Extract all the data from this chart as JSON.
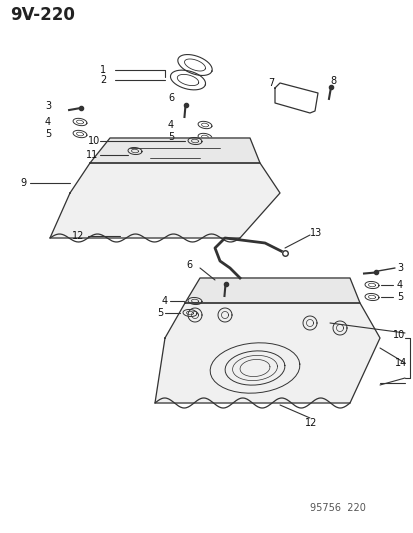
{
  "title": "9V-220",
  "watermark": "95756  220",
  "bg_color": "#ffffff",
  "line_color": "#333333",
  "text_color": "#111111",
  "figsize": [
    4.14,
    5.33
  ],
  "dpi": 100
}
